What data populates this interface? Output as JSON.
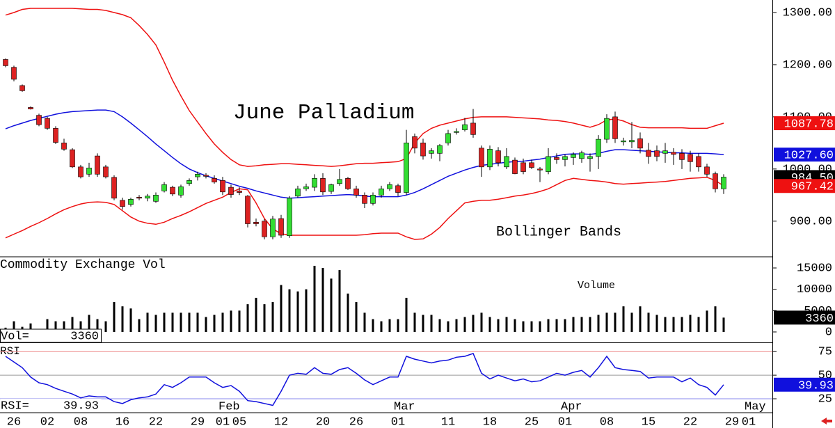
{
  "chart_data": [
    {
      "type": "candlestick",
      "title": "June Palladium",
      "annotation": "Bollinger Bands",
      "categories": [
        null,
        "26",
        null,
        null,
        null,
        "02",
        null,
        null,
        null,
        "08",
        null,
        null,
        null,
        null,
        "16",
        null,
        null,
        null,
        "22",
        null,
        null,
        null,
        null,
        "29",
        null,
        null,
        "01",
        null,
        "05",
        null,
        null,
        null,
        null,
        "12",
        null,
        null,
        null,
        null,
        "20",
        null,
        null,
        null,
        "26",
        null,
        null,
        null,
        null,
        "01",
        null,
        null,
        null,
        null,
        null,
        "11",
        null,
        null,
        null,
        null,
        "18",
        null,
        null,
        null,
        null,
        "25",
        null,
        null,
        null,
        "01",
        null,
        null,
        null,
        null,
        "08",
        null,
        null,
        null,
        null,
        "15",
        null,
        null,
        null,
        null,
        "22",
        null,
        null,
        null,
        null,
        "29",
        null,
        "01"
      ],
      "month_categories": [
        null,
        null,
        null,
        null,
        null,
        null,
        null,
        null,
        null,
        null,
        null,
        null,
        null,
        null,
        null,
        null,
        null,
        null,
        null,
        null,
        null,
        null,
        null,
        null,
        null,
        null,
        "Feb",
        null,
        null,
        null,
        null,
        null,
        null,
        null,
        null,
        null,
        null,
        null,
        null,
        null,
        null,
        null,
        null,
        null,
        null,
        null,
        null,
        "Mar",
        null,
        null,
        null,
        null,
        null,
        null,
        null,
        null,
        null,
        null,
        null,
        null,
        null,
        null,
        null,
        null,
        null,
        null,
        null,
        "Apr",
        null,
        null,
        null,
        null,
        null,
        null,
        null,
        null,
        null,
        null,
        null,
        null,
        null,
        null,
        null,
        null,
        null,
        null,
        null,
        null,
        null,
        "May"
      ],
      "open": [
        1210,
        1195,
        1160,
        1118,
        1103,
        1097,
        1078,
        1050,
        1037,
        1004,
        990,
        1025,
        1004,
        984,
        940,
        932,
        946,
        944,
        938,
        958,
        965,
        950,
        972,
        985,
        988,
        982,
        978,
        965,
        958,
        948,
        898,
        900,
        870,
        905,
        872,
        948,
        962,
        965,
        982,
        957,
        972,
        982,
        962,
        950,
        934,
        950,
        962,
        968,
        955,
        1062,
        1050,
        1030,
        1030,
        1050,
        1070,
        1075,
        1088,
        1040,
        1004,
        1035,
        1004,
        1017,
        1012,
        1012,
        1000,
        995,
        1022,
        1018,
        1022,
        1020,
        1020,
        1024,
        1057,
        1100,
        1052,
        1052,
        1058,
        1036,
        1035,
        1030,
        1032,
        1030,
        1028,
        1024,
        1004,
        991,
        962,
        null,
        null,
        null
      ],
      "high": [
        1212,
        1198,
        1162,
        1120,
        1106,
        1100,
        1082,
        1058,
        1040,
        1008,
        1012,
        1030,
        1008,
        988,
        945,
        945,
        950,
        952,
        955,
        975,
        968,
        970,
        982,
        995,
        992,
        988,
        985,
        970,
        965,
        950,
        905,
        904,
        910,
        912,
        948,
        968,
        972,
        990,
        992,
        972,
        1000,
        985,
        968,
        955,
        955,
        968,
        975,
        972,
        1075,
        1068,
        1058,
        1040,
        1048,
        1075,
        1078,
        1098,
        1115,
        1045,
        1045,
        1042,
        1040,
        1022,
        1020,
        1018,
        1004,
        1040,
        1030,
        1028,
        1032,
        1035,
        1030,
        1065,
        1105,
        1110,
        1060,
        1090,
        1070,
        1050,
        1045,
        1050,
        1040,
        1038,
        1035,
        1030,
        1010,
        995,
        990,
        null,
        null,
        null
      ],
      "low": [
        1195,
        1168,
        1148,
        1114,
        1082,
        1075,
        1048,
        1035,
        1002,
        982,
        985,
        985,
        982,
        940,
        922,
        928,
        940,
        938,
        935,
        955,
        948,
        945,
        968,
        978,
        982,
        972,
        950,
        945,
        950,
        888,
        890,
        865,
        865,
        868,
        868,
        945,
        958,
        958,
        950,
        952,
        968,
        960,
        945,
        925,
        930,
        945,
        958,
        948,
        950,
        1030,
        1018,
        1020,
        1015,
        1045,
        1066,
        1072,
        1060,
        985,
        998,
        1005,
        1000,
        990,
        990,
        1000,
        975,
        990,
        1010,
        1005,
        1008,
        1012,
        995,
        1000,
        1050,
        1050,
        1045,
        1040,
        1030,
        1010,
        1015,
        1012,
        1008,
        1000,
        995,
        995,
        985,
        955,
        952,
        null,
        null,
        null
      ],
      "close": [
        1198,
        1172,
        1150,
        1115,
        1085,
        1078,
        1051,
        1038,
        1004,
        985,
        1002,
        990,
        985,
        944,
        928,
        942,
        945,
        948,
        950,
        970,
        952,
        966,
        978,
        990,
        987,
        975,
        956,
        951,
        955,
        895,
        895,
        870,
        904,
        873,
        944,
        962,
        966,
        982,
        956,
        970,
        980,
        962,
        950,
        934,
        950,
        962,
        970,
        955,
        1050,
        1040,
        1025,
        1035,
        1045,
        1068,
        1072,
        1085,
        1066,
        1004,
        1038,
        1012,
        1024,
        991,
        995,
        1003,
        998,
        1024,
        1018,
        1024,
        1028,
        1031,
        1024,
        1057,
        1097,
        1058,
        1054,
        1055,
        1040,
        1024,
        1024,
        1035,
        1028,
        1018,
        1014,
        1004,
        990,
        962,
        984.5,
        null,
        null,
        null
      ],
      "close_last_label": "984.50",
      "up_color": "#33dd33",
      "down_color": "#dd2222",
      "bands": [
        {
          "color": "#ee1111",
          "values": [
            1295,
            1300,
            1306,
            1308,
            1308,
            1308,
            1308,
            1308,
            1308,
            1307,
            1306,
            1306,
            1304,
            1300,
            1296,
            1290,
            1275,
            1258,
            1238,
            1205,
            1170,
            1140,
            1112,
            1090,
            1068,
            1048,
            1032,
            1018,
            1008,
            1005,
            1006,
            1008,
            1009,
            1010,
            1010,
            1009,
            1008,
            1007,
            1006,
            1005,
            1006,
            1008,
            1010,
            1011,
            1011,
            1012,
            1013,
            1014,
            1020,
            1050,
            1068,
            1078,
            1084,
            1088,
            1092,
            1096,
            1099,
            1100,
            1100,
            1100,
            1100,
            1099,
            1098,
            1097,
            1096,
            1094,
            1093,
            1091,
            1088,
            1084,
            1080,
            1085,
            1094,
            1096,
            1092,
            1085,
            1080,
            1079,
            1079,
            1079,
            1079,
            1079,
            1078,
            1078,
            1078,
            1083,
            1087.78,
            null,
            null,
            null
          ]
        },
        {
          "color": "#1010dd",
          "last_label": "1027.60",
          "values": [
            1077,
            1083,
            1088,
            1093,
            1097,
            1101,
            1105,
            1108,
            1110,
            1111,
            1112,
            1113,
            1113,
            1110,
            1100,
            1088,
            1075,
            1062,
            1048,
            1035,
            1022,
            1010,
            1000,
            993,
            987,
            982,
            977,
            972,
            967,
            963,
            958,
            954,
            950,
            946,
            944,
            945,
            946,
            947,
            948,
            949,
            950,
            951,
            950,
            948,
            947,
            947,
            947,
            947,
            950,
            955,
            962,
            970,
            978,
            986,
            992,
            998,
            1003,
            1007,
            1009,
            1011,
            1013,
            1014,
            1015,
            1017,
            1019,
            1022,
            1025,
            1028,
            1029,
            1029,
            1028,
            1030,
            1034,
            1037,
            1037,
            1036,
            1035,
            1034,
            1033,
            1032,
            1031,
            1031,
            1030,
            1030,
            1030,
            1029,
            1027.6,
            null,
            null,
            null
          ]
        },
        {
          "color": "#ee1111",
          "values": [
            868,
            875,
            882,
            890,
            897,
            905,
            914,
            922,
            928,
            933,
            936,
            937,
            936,
            932,
            920,
            908,
            900,
            896,
            894,
            898,
            905,
            911,
            918,
            926,
            934,
            940,
            946,
            955,
            962,
            960,
            935,
            905,
            885,
            876,
            873,
            873,
            873,
            873,
            873,
            873,
            873,
            873,
            873,
            874,
            876,
            877,
            877,
            877,
            870,
            865,
            866,
            875,
            888,
            905,
            920,
            935,
            938,
            940,
            940,
            942,
            945,
            948,
            950,
            953,
            957,
            962,
            970,
            978,
            982,
            980,
            978,
            977,
            975,
            972,
            971,
            972,
            973,
            974,
            975,
            976,
            978,
            980,
            982,
            983,
            984,
            978,
            967.42,
            null,
            null,
            null
          ]
        }
      ],
      "ylim": [
        833,
        1324
      ],
      "yticks": [
        {
          "value": 1300,
          "label": "1300.00"
        },
        {
          "value": 1200,
          "label": "1200.00"
        },
        {
          "value": 1100,
          "label": "1100.00"
        },
        {
          "value": 1000,
          "label": "1000.00"
        },
        {
          "value": 900,
          "label": "900.00"
        }
      ]
    },
    {
      "type": "bar",
      "title": "Commodity Exchange Vol",
      "annotation": "Volume",
      "readout_label": "Vol=",
      "color": "#000000",
      "values": [
        1000,
        2500,
        1200,
        2000,
        500,
        3000,
        2500,
        2500,
        3500,
        2500,
        4000,
        3000,
        2500,
        7000,
        6000,
        5500,
        3000,
        4500,
        4000,
        4500,
        4500,
        4500,
        4500,
        4500,
        3500,
        4000,
        4500,
        5000,
        5000,
        6500,
        8000,
        6500,
        7000,
        11000,
        10000,
        9500,
        10000,
        15500,
        15000,
        12500,
        14500,
        9000,
        7000,
        4500,
        3000,
        2500,
        3000,
        3000,
        8000,
        4500,
        4000,
        4000,
        3000,
        2500,
        3000,
        3500,
        4000,
        4500,
        3500,
        3000,
        3500,
        3000,
        2500,
        2500,
        2500,
        3000,
        3000,
        3000,
        3500,
        3500,
        3500,
        4000,
        4500,
        4500,
        6000,
        4500,
        6000,
        4500,
        4000,
        3500,
        3500,
        3500,
        4000,
        3500,
        5000,
        6000,
        3360,
        null,
        null,
        null
      ],
      "ylim": [
        -2450,
        17450
      ],
      "yticks": [
        15000,
        10000,
        5000,
        0
      ]
    },
    {
      "type": "line",
      "title": "RSI",
      "readout_label": "RSI=",
      "color": "#1010dd",
      "values": [
        70,
        64,
        58,
        48,
        42,
        40,
        36,
        33,
        30,
        26,
        28,
        27,
        27,
        22,
        20,
        24,
        26,
        27,
        30,
        40,
        37,
        42,
        48,
        48,
        48,
        42,
        37,
        39,
        33,
        23,
        22,
        20,
        18,
        33,
        50,
        52,
        51,
        58,
        52,
        51,
        56,
        58,
        52,
        45,
        40,
        44,
        48,
        48,
        70,
        67,
        65,
        63,
        65,
        66,
        69,
        70,
        73,
        52,
        46,
        50,
        47,
        44,
        46,
        43,
        44,
        48,
        52,
        50,
        53,
        55,
        48,
        58,
        70,
        58,
        56,
        55,
        54,
        47,
        48,
        48,
        48,
        43,
        47,
        40,
        37,
        29,
        39.93,
        null,
        null,
        null
      ],
      "ylim": [
        11,
        84
      ],
      "yticks": [
        75,
        50,
        25
      ],
      "grid": true,
      "grid_colors": [
        "#ee8888",
        "#999999",
        "#8888ee"
      ]
    }
  ]
}
